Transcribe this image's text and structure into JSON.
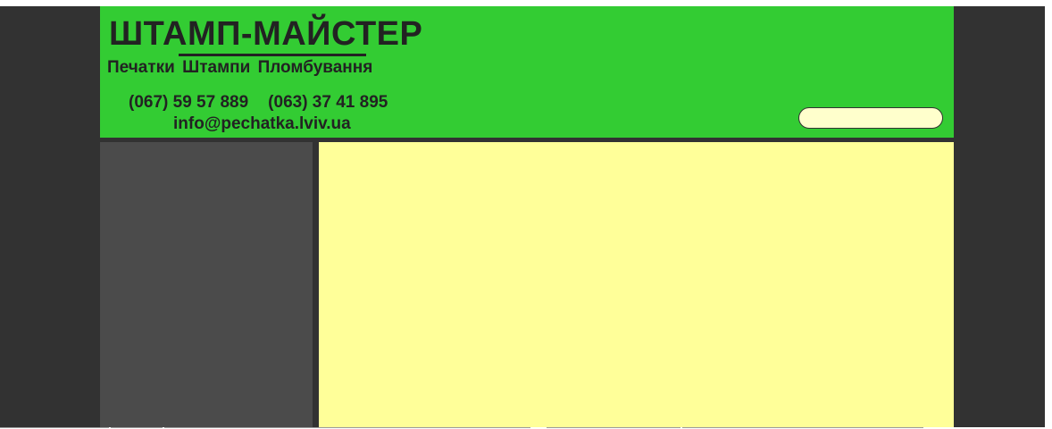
{
  "header": {
    "logo_title": "ШТАМП-МАЙСТЕР",
    "tagline": "Печатки  Штампи  Пломбування",
    "phones": [
      "(067) 59 57 889",
      "(063) 37 41 895"
    ],
    "email": "info@pechatka.lviv.ua",
    "search": {
      "value": "",
      "placeholder": ""
    }
  },
  "colors": {
    "frame_background": "#323232",
    "header_background": "#33cc33",
    "sidebar_background": "#4b4b4b",
    "content_background": "#ffff99",
    "search_background": "#ffffcc",
    "text": "#222222"
  }
}
